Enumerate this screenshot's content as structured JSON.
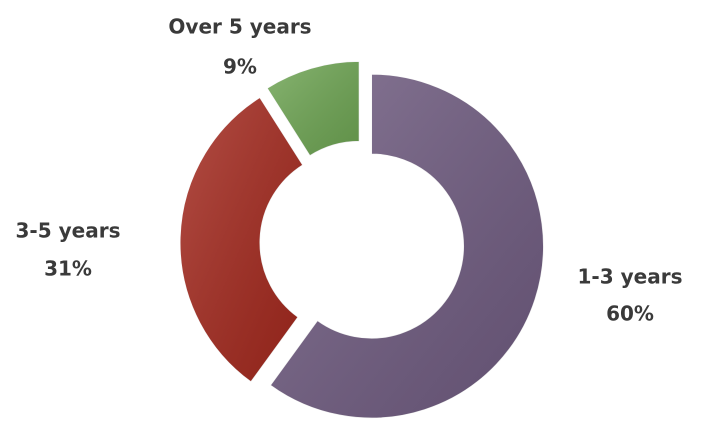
{
  "chart_data": {
    "type": "pie",
    "donut": true,
    "categories": [
      "1-3 years",
      "3-5 years",
      "Over 5 years"
    ],
    "values": [
      60,
      31,
      9
    ],
    "value_labels": [
      "60%",
      "31%",
      "9%"
    ],
    "colors": [
      "#6f5b80",
      "#a3281d",
      "#6ea553"
    ]
  }
}
